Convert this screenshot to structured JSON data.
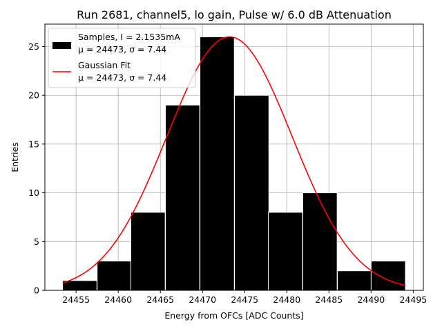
{
  "chart_data": {
    "type": "bar",
    "title": "Run 2681, channel5, lo gain, Pulse w/ 6.0 dB Attenuation",
    "xlabel": "Energy from OFCs [ADC Counts]",
    "ylabel": "Entries",
    "xlim": [
      24451.3,
      24496.2
    ],
    "ylim": [
      0,
      27.3
    ],
    "grid": true,
    "legend_placement": "upper-left",
    "x_ticks": [
      24455,
      24460,
      24465,
      24470,
      24475,
      24480,
      24485,
      24490,
      24495
    ],
    "y_ticks": [
      0,
      5,
      10,
      15,
      20,
      25
    ],
    "bin_width": 4.07,
    "bins": [
      {
        "left": 24453.4,
        "count": 1
      },
      {
        "left": 24457.5,
        "count": 3
      },
      {
        "left": 24461.5,
        "count": 8
      },
      {
        "left": 24465.6,
        "count": 19
      },
      {
        "left": 24469.7,
        "count": 26
      },
      {
        "left": 24473.8,
        "count": 20
      },
      {
        "left": 24477.8,
        "count": 8
      },
      {
        "left": 24481.9,
        "count": 10
      },
      {
        "left": 24486.0,
        "count": 2
      },
      {
        "left": 24490.0,
        "count": 3
      }
    ],
    "fit": {
      "mu": 24473.2,
      "sigma": 7.44,
      "amplitude": 26.0,
      "x_range": [
        24453.4,
        24494.1
      ],
      "color": "#ff0000"
    },
    "series": [
      {
        "name_line1": "Samples, I = 2.1535mA",
        "name_line2": "μ = 24473, σ = 7.44",
        "color": "#000000"
      },
      {
        "name_line1": "Gaussian Fit",
        "name_line2": "μ = 24473, σ = 7.44",
        "color": "#ff0000"
      }
    ]
  }
}
